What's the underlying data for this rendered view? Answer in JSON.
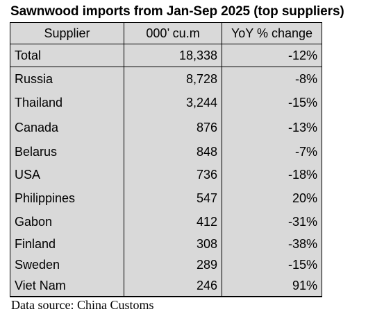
{
  "chart_data": {
    "type": "table",
    "title": "Sawnwood imports from Jan-Sep 2025 (top suppliers)",
    "columns": [
      "Supplier",
      "000’ cu.m",
      "YoY % change"
    ],
    "total": {
      "supplier": "Total",
      "volume": "18,338",
      "change": "-12%"
    },
    "rows": [
      {
        "supplier": "Russia",
        "volume": "8,728",
        "change": "-8%"
      },
      {
        "supplier": "Thailand",
        "volume": "3,244",
        "change": "-15%"
      },
      {
        "supplier": "Canada",
        "volume": "876",
        "change": "-13%"
      },
      {
        "supplier": "Belarus",
        "volume": "848",
        "change": "-7%"
      },
      {
        "supplier": "USA",
        "volume": "736",
        "change": "-18%"
      },
      {
        "supplier": "Philippines",
        "volume": "547",
        "change": "20%"
      },
      {
        "supplier": "Gabon",
        "volume": "412",
        "change": "-31%"
      },
      {
        "supplier": "Finland",
        "volume": "308",
        "change": "-38%"
      },
      {
        "supplier": "Sweden",
        "volume": "289",
        "change": "-15%"
      },
      {
        "supplier": "Viet Nam",
        "volume": "246",
        "change": "91%"
      }
    ],
    "source": "Data source: China Customs"
  },
  "colors": {
    "table_fill": "#d9d9d9",
    "border": "#000000"
  }
}
